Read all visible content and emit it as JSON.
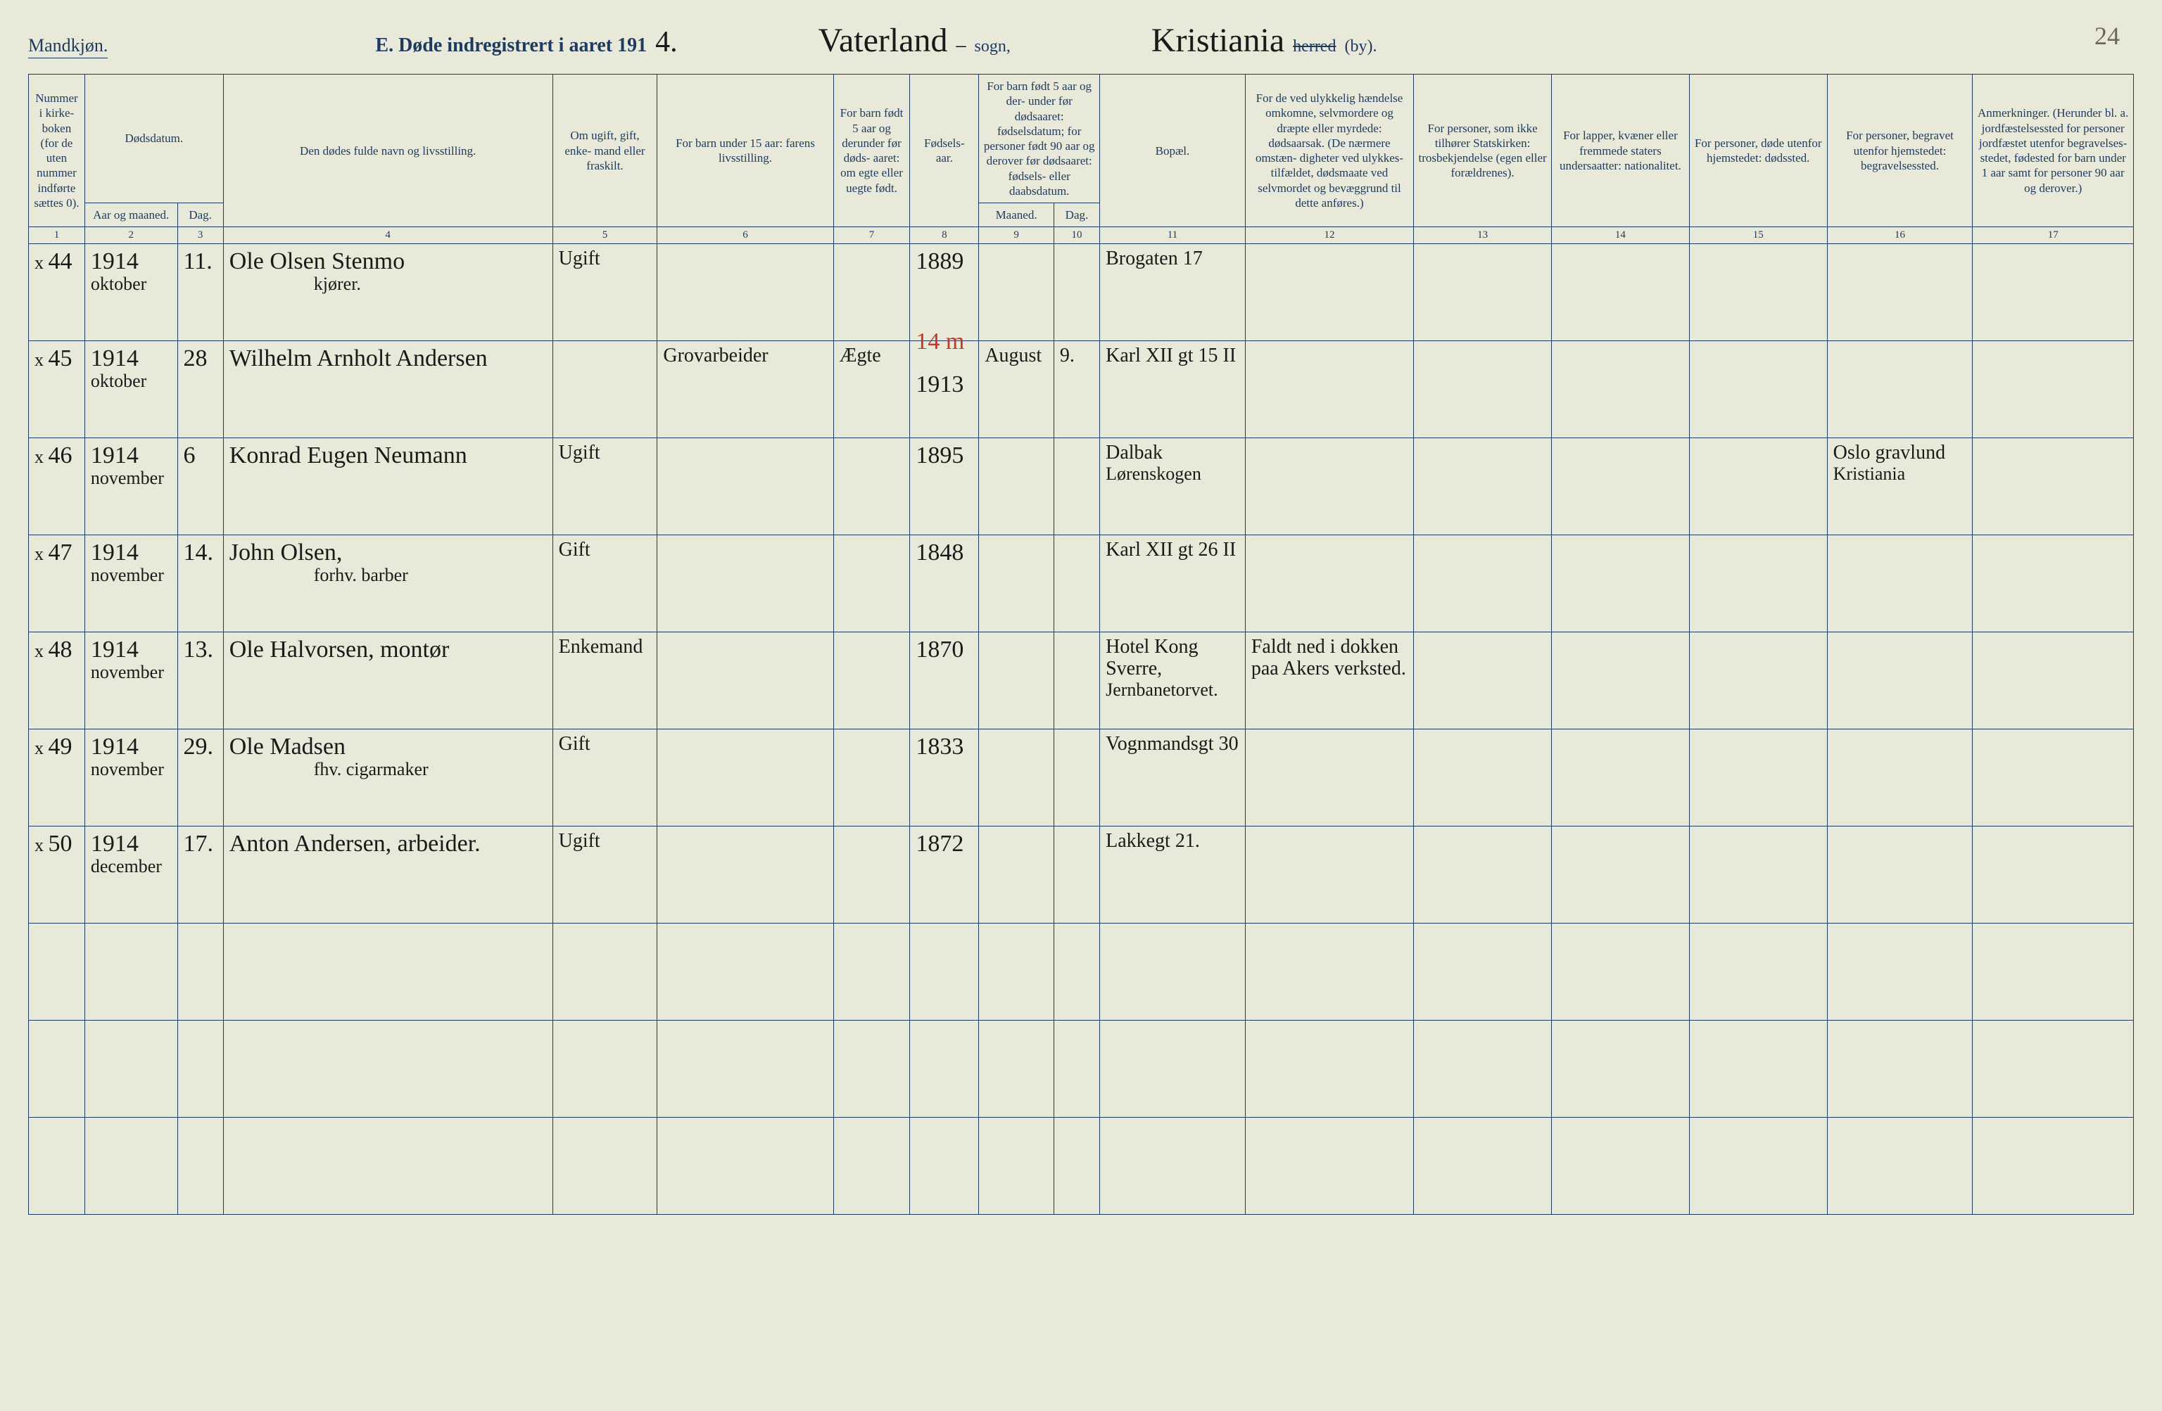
{
  "page_number_corner": "24",
  "header": {
    "gender": "Mandkjøn.",
    "title_prefix": "E.  Døde indregistrert i aaret 191",
    "title_year_hand": "4.",
    "parish_hand": "Vaterland",
    "parish_suffix": "sogn,",
    "city_hand": "Kristiania",
    "city_print_strike": "herred",
    "city_print_suffix": "(by)."
  },
  "columns": {
    "c1": "Nummer i kirke- boken (for de uten nummer indførte sættes 0).",
    "c2_group": "Dødsdatum.",
    "c2a": "Aar og maaned.",
    "c2b": "Dag.",
    "c4": "Den dødes fulde navn og livsstilling.",
    "c5": "Om ugift, gift, enke- mand eller fraskilt.",
    "c6": "For barn under 15 aar: farens livsstilling.",
    "c7": "For barn født 5 aar og derunder før døds- aaret: om egte eller uegte født.",
    "c8": "Fødsels- aar.",
    "c910_group": "For barn født 5 aar og der- under før dødsaaret: fødselsdatum; for personer født 90 aar og derover før dødsaaret: fødsels- eller daabsdatum.",
    "c9": "Maaned.",
    "c10": "Dag.",
    "c11": "Bopæl.",
    "c12": "For de ved ulykkelig hændelse omkomne, selvmordere og dræpte eller myrdede: dødsaarsak. (De nærmere omstæn- digheter ved ulykkes- tilfældet, dødsmaate ved selvmordet og bevæggrund til dette anføres.)",
    "c13": "For personer, som ikke tilhører Statskirken: trosbekjendelse (egen eller forældrenes).",
    "c14": "For lapper, kvæner eller fremmede staters undersaatter: nationalitet.",
    "c15": "For personer, døde utenfor hjemstedet: dødssted.",
    "c16": "For personer, begravet utenfor hjemstedet: begravelsessted.",
    "c17": "Anmerkninger. (Herunder bl. a. jordfæstelsessted for personer jordfæstet utenfor begravelses- stedet, fødested for barn under 1 aar samt for personer 90 aar og derover.)"
  },
  "colnums": [
    "1",
    "2",
    "3",
    "4",
    "5",
    "6",
    "7",
    "8",
    "9",
    "10",
    "11",
    "12",
    "13",
    "14",
    "15",
    "16",
    "17"
  ],
  "rows": [
    {
      "mark": "x",
      "num": "44",
      "yearmonth": "1914",
      "yearmonth_sub": "oktober",
      "day": "11.",
      "name": "Ole Olsen Stenmo",
      "name_sub": "kjører.",
      "civil": "Ugift",
      "father": "",
      "legit": "",
      "birthyear": "1889",
      "bm": "",
      "bd": "",
      "bopel": "Brogaten 17",
      "cause": "",
      "faith": "",
      "nat": "",
      "deathplace": "",
      "burial": "",
      "notes": "",
      "red": ""
    },
    {
      "mark": "x",
      "num": "45",
      "yearmonth": "1914",
      "yearmonth_sub": "oktober",
      "day": "28",
      "name": "Wilhelm Arnholt Andersen",
      "name_sub": "",
      "civil": "",
      "father": "Grovarbeider",
      "legit": "Ægte",
      "birthyear": "1913",
      "bm": "August",
      "bd": "9.",
      "bopel": "Karl XII gt 15 II",
      "cause": "",
      "faith": "",
      "nat": "",
      "deathplace": "",
      "burial": "",
      "notes": "",
      "red": "14 m"
    },
    {
      "mark": "x",
      "num": "46",
      "yearmonth": "1914",
      "yearmonth_sub": "november",
      "day": "6",
      "name": "Konrad Eugen Neumann",
      "name_sub": "",
      "civil": "Ugift",
      "father": "",
      "legit": "",
      "birthyear": "1895",
      "bm": "",
      "bd": "",
      "bopel": "Dalbak",
      "bopel_sub": "Lørenskogen",
      "cause": "",
      "faith": "",
      "nat": "",
      "deathplace": "",
      "burial": "Oslo gravlund",
      "burial_sub": "Kristiania",
      "notes": ""
    },
    {
      "mark": "x",
      "num": "47",
      "yearmonth": "1914",
      "yearmonth_sub": "november",
      "day": "14.",
      "name": "John Olsen,",
      "name_sub": "forhv. barber",
      "civil": "Gift",
      "father": "",
      "legit": "",
      "birthyear": "1848",
      "bm": "",
      "bd": "",
      "bopel": "Karl XII gt 26 II",
      "cause": "",
      "faith": "",
      "nat": "",
      "deathplace": "",
      "burial": "",
      "notes": ""
    },
    {
      "mark": "x",
      "num": "48",
      "yearmonth": "1914",
      "yearmonth_sub": "november",
      "day": "13.",
      "name": "Ole Halvorsen, montør",
      "name_sub": "",
      "civil": "Enkemand",
      "father": "",
      "legit": "",
      "birthyear": "1870",
      "bm": "",
      "bd": "",
      "bopel": "Hotel Kong Sverre,",
      "bopel_sub": "Jernbanetorvet.",
      "cause": "Faldt ned i dokken paa Akers verksted.",
      "faith": "",
      "nat": "",
      "deathplace": "",
      "burial": "",
      "notes": ""
    },
    {
      "mark": "x",
      "num": "49",
      "yearmonth": "1914",
      "yearmonth_sub": "november",
      "day": "29.",
      "name": "Ole Madsen",
      "name_sub": "fhv. cigarmaker",
      "civil": "Gift",
      "father": "",
      "legit": "",
      "birthyear": "1833",
      "bm": "",
      "bd": "",
      "bopel": "Vognmandsgt 30",
      "cause": "",
      "faith": "",
      "nat": "",
      "deathplace": "",
      "burial": "",
      "notes": ""
    },
    {
      "mark": "x",
      "num": "50",
      "yearmonth": "1914",
      "yearmonth_sub": "december",
      "day": "17.",
      "name": "Anton Andersen, arbeider.",
      "name_sub": "",
      "civil": "Ugift",
      "father": "",
      "legit": "",
      "birthyear": "1872",
      "bm": "",
      "bd": "",
      "bopel": "Lakkegt 21.",
      "cause": "",
      "faith": "",
      "nat": "",
      "deathplace": "",
      "burial": "",
      "notes": ""
    },
    {
      "blank": true
    },
    {
      "blank": true
    },
    {
      "blank": true
    }
  ]
}
